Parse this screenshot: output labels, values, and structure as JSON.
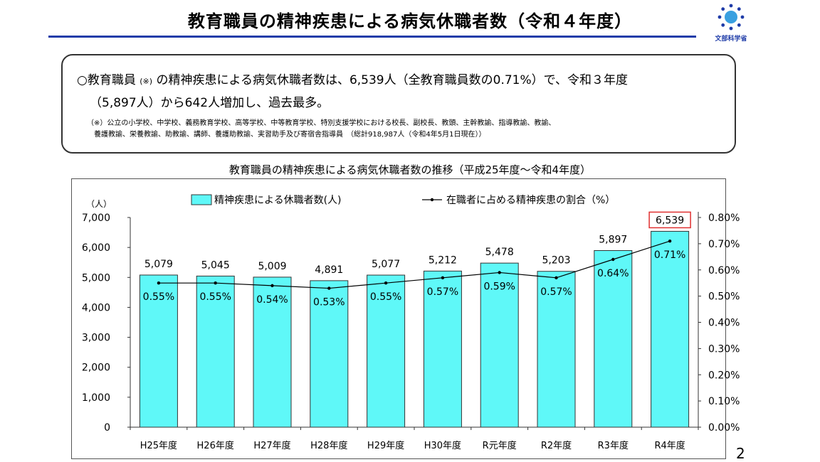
{
  "header": {
    "title": "教育職員の精神疾患による病気休職者数（令和４年度）",
    "logo_text": "文部科学省"
  },
  "summary": {
    "line1_prefix": "○教育職員",
    "line1_mark": "(※)",
    "line1_rest": "の精神疾患による病気休職者数は、6,539人（全教育職員数の0.71%）で、令和３年度",
    "line2": "（5,897人）から642人増加し、過去最多。",
    "note_line1": "（※）公立の小学校、中学校、義務教育学校、高等学校、中等教育学校、特別支援学校における校長、副校長、教頭、主幹教諭、指導教諭、教諭、",
    "note_line2": "養護教諭、栄養教諭、助教諭、講師、養護助教諭、実習助手及び寄宿舎指導員　（総計918,987人（令和4年5月1日現在））"
  },
  "chart_data": {
    "type": "bar",
    "title": "教育職員の精神疾患による病気休職者数の推移（平成25年度～令和4年度）",
    "categories": [
      "H25年度",
      "H26年度",
      "H27年度",
      "H28年度",
      "H29年度",
      "H30年度",
      "R元年度",
      "R2年度",
      "R3年度",
      "R4年度"
    ],
    "series": [
      {
        "name": "精神疾患による休職者数(人)",
        "type": "bar",
        "axis": "left",
        "values": [
          5079,
          5045,
          5009,
          4891,
          5077,
          5212,
          5478,
          5203,
          5897,
          6539
        ],
        "labels": [
          "5,079",
          "5,045",
          "5,009",
          "4,891",
          "5,077",
          "5,212",
          "5,478",
          "5,203",
          "5,897",
          "6,539"
        ],
        "color": "#5ff8f8"
      },
      {
        "name": "在職者に占める精神疾患の割合（%）",
        "type": "line",
        "axis": "right",
        "values": [
          0.55,
          0.55,
          0.54,
          0.53,
          0.55,
          0.57,
          0.59,
          0.57,
          0.64,
          0.71
        ],
        "labels": [
          "0.55%",
          "0.55%",
          "0.54%",
          "0.53%",
          "0.55%",
          "0.57%",
          "0.59%",
          "0.57%",
          "0.64%",
          "0.71%"
        ],
        "color": "#000000"
      }
    ],
    "y_left": {
      "unit": "（人）",
      "range": [
        0,
        7000
      ],
      "ticks": [
        "0",
        "1,000",
        "2,000",
        "3,000",
        "4,000",
        "5,000",
        "6,000",
        "7,000"
      ]
    },
    "y_right": {
      "range": [
        0,
        0.8
      ],
      "ticks": [
        "0.00%",
        "0.10%",
        "0.20%",
        "0.30%",
        "0.40%",
        "0.50%",
        "0.60%",
        "0.70%",
        "0.80%"
      ]
    },
    "highlight_index": 9,
    "highlight_color": "#e03030",
    "grid": false,
    "legend_position": "top"
  },
  "page_number": "2"
}
